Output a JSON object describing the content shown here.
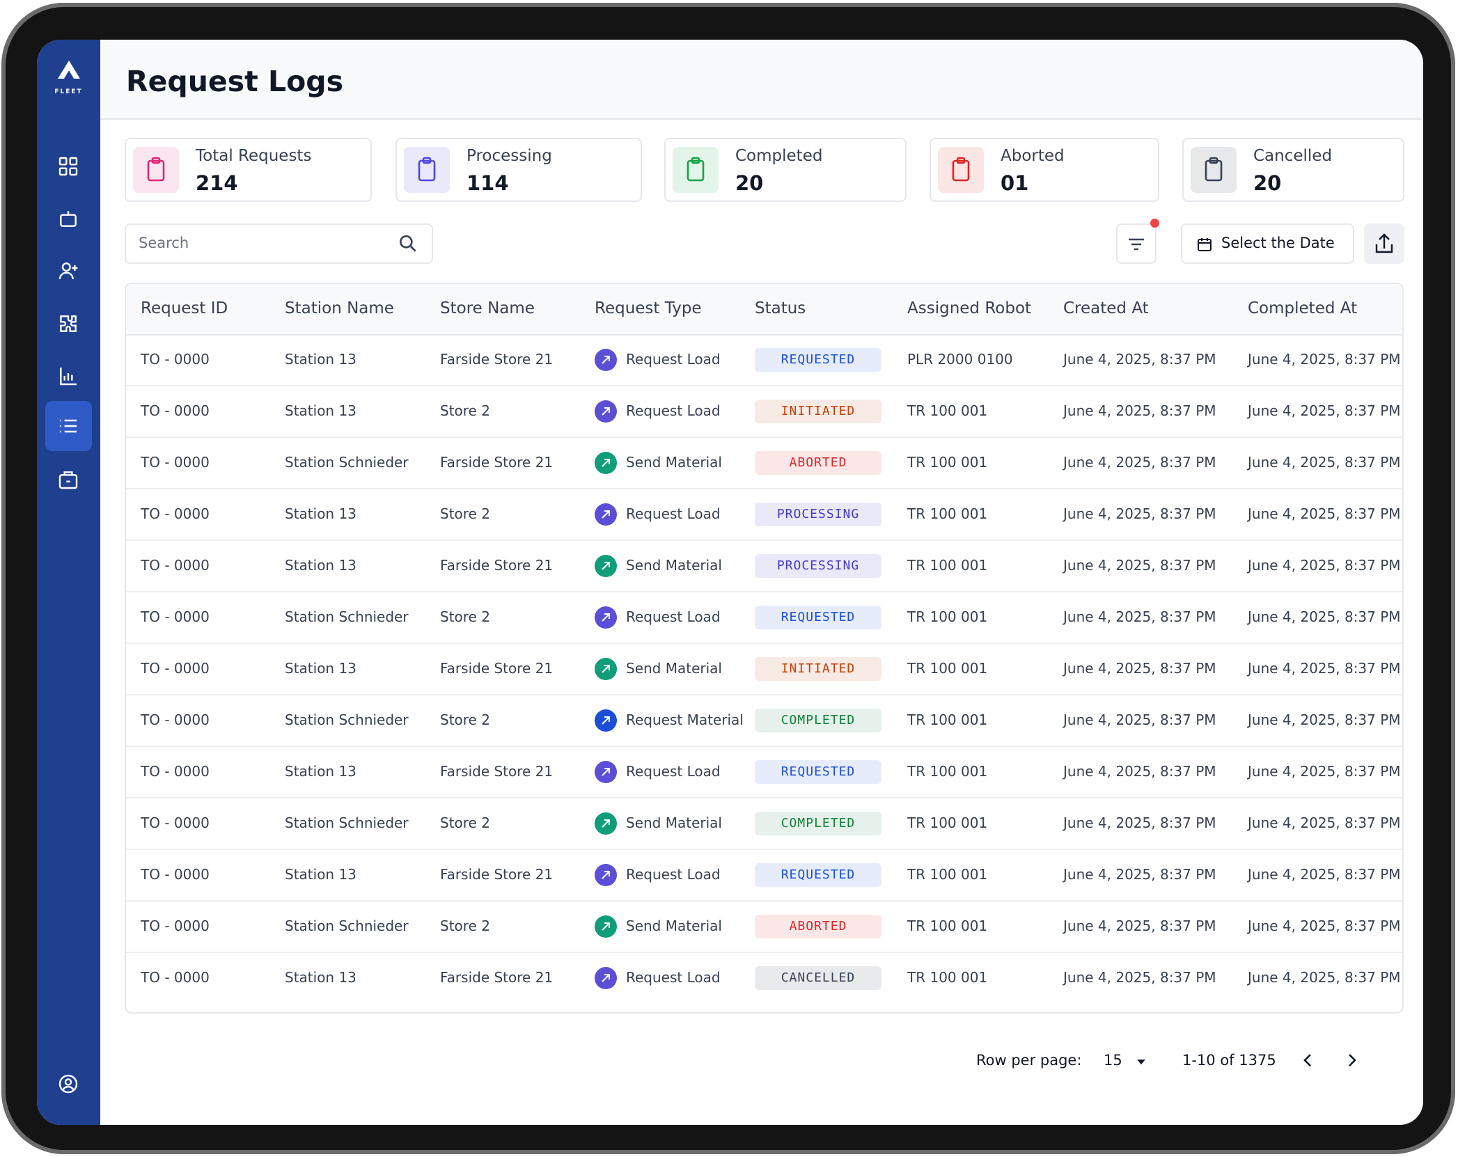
{
  "brand": "FLEET",
  "header": {
    "title": "Request Logs"
  },
  "stats": [
    {
      "label": "Total Requests",
      "value": "214",
      "color": "#db2777"
    },
    {
      "label": "Processing",
      "value": "114",
      "color": "#4f46e5"
    },
    {
      "label": "Completed",
      "value": "20",
      "color": "#16a34a"
    },
    {
      "label": "Aborted",
      "value": "01",
      "color": "#dc2626"
    },
    {
      "label": "Cancelled",
      "value": "20",
      "color": "#374151"
    }
  ],
  "toolbar": {
    "search_placeholder": "Search",
    "date_button": "Select the Date"
  },
  "table": {
    "columns": [
      "Request ID",
      "Station Name",
      "Store Name",
      "Request Type",
      "Status",
      "Assigned Robot",
      "Created At",
      "Completed At"
    ],
    "rows": [
      {
        "cells": [
          "TO - 0000",
          "Station 13",
          "Farside Store 21",
          "Request Load",
          "REQUESTED",
          "PLR 2000 0100",
          "June 4, 2025, 8:37 PM",
          "June 4, 2025, 8:37 PM"
        ],
        "type_color": "#5b4fd6",
        "status_color": "#1d4ed8"
      },
      {
        "cells": [
          "TO - 0000",
          "Station 13",
          "Store 2",
          "Request Load",
          "INITIATED",
          "TR 100 001",
          "June 4, 2025, 8:37 PM",
          "June 4, 2025, 8:37 PM"
        ],
        "type_color": "#5b4fd6",
        "status_color": "#c2410c"
      },
      {
        "cells": [
          "TO - 0000",
          "Station Schnieder",
          "Farside Store 21",
          "Send Material",
          "ABORTED",
          "TR 100 001",
          "June 4, 2025, 8:37 PM",
          "June 4, 2025, 8:37 PM"
        ],
        "type_color": "#0f9d7a",
        "status_color": "#dc2626"
      },
      {
        "cells": [
          "TO - 0000",
          "Station 13",
          "Store 2",
          "Request Load",
          "PROCESSING",
          "TR 100 001",
          "June 4, 2025, 8:37 PM",
          "June 4, 2025, 8:37 PM"
        ],
        "type_color": "#5b4fd6",
        "status_color": "#4338ca"
      },
      {
        "cells": [
          "TO - 0000",
          "Station 13",
          "Farside Store 21",
          "Send Material",
          "PROCESSING",
          "TR 100 001",
          "June 4, 2025, 8:37 PM",
          "June 4, 2025, 8:37 PM"
        ],
        "type_color": "#0f9d7a",
        "status_color": "#4338ca"
      },
      {
        "cells": [
          "TO - 0000",
          "Station Schnieder",
          "Store 2",
          "Request Load",
          "REQUESTED",
          "TR 100 001",
          "June 4, 2025, 8:37 PM",
          "June 4, 2025, 8:37 PM"
        ],
        "type_color": "#5b4fd6",
        "status_color": "#1d4ed8"
      },
      {
        "cells": [
          "TO - 0000",
          "Station 13",
          "Farside Store 21",
          "Send Material",
          "INITIATED",
          "TR 100 001",
          "June 4, 2025, 8:37 PM",
          "June 4, 2025, 8:37 PM"
        ],
        "type_color": "#0f9d7a",
        "status_color": "#c2410c"
      },
      {
        "cells": [
          "TO - 0000",
          "Station Schnieder",
          "Store 2",
          "Request Material",
          "COMPLETED",
          "TR 100 001",
          "June 4, 2025, 8:37 PM",
          "June 4, 2025, 8:37 PM"
        ],
        "type_color": "#1d4ed8",
        "status_color": "#15803d"
      },
      {
        "cells": [
          "TO - 0000",
          "Station 13",
          "Farside Store 21",
          "Request Load",
          "REQUESTED",
          "TR 100 001",
          "June 4, 2025, 8:37 PM",
          "June 4, 2025, 8:37 PM"
        ],
        "type_color": "#5b4fd6",
        "status_color": "#1d4ed8"
      },
      {
        "cells": [
          "TO - 0000",
          "Station Schnieder",
          "Store 2",
          "Send Material",
          "COMPLETED",
          "TR 100 001",
          "June 4, 2025, 8:37 PM",
          "June 4, 2025, 8:37 PM"
        ],
        "type_color": "#0f9d7a",
        "status_color": "#15803d"
      },
      {
        "cells": [
          "TO - 0000",
          "Station 13",
          "Farside Store 21",
          "Request Load",
          "REQUESTED",
          "TR 100 001",
          "June 4, 2025, 8:37 PM",
          "June 4, 2025, 8:37 PM"
        ],
        "type_color": "#5b4fd6",
        "status_color": "#1d4ed8"
      },
      {
        "cells": [
          "TO - 0000",
          "Station Schnieder",
          "Store 2",
          "Send Material",
          "ABORTED",
          "TR 100 001",
          "June 4, 2025, 8:37 PM",
          "June 4, 2025, 8:37 PM"
        ],
        "type_color": "#0f9d7a",
        "status_color": "#dc2626"
      },
      {
        "cells": [
          "TO - 0000",
          "Station 13",
          "Farside Store 21",
          "Request Load",
          "CANCELLED",
          "TR 100 001",
          "June 4, 2025, 8:37 PM",
          "June 4, 2025, 8:37 PM"
        ],
        "type_color": "#5b4fd6",
        "status_color": "#374151"
      }
    ]
  },
  "pagination": {
    "rows_label": "Row per page:",
    "rows_per_page": "15",
    "range": "1-10 of 1375"
  }
}
